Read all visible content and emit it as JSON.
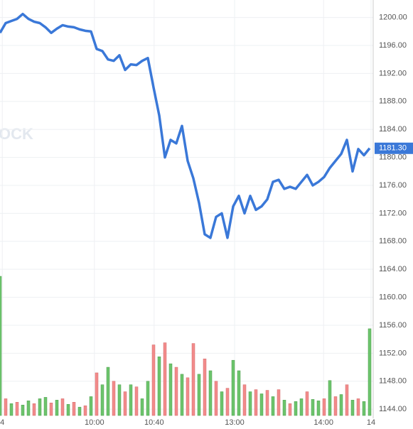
{
  "chart_data": {
    "type": "line",
    "watermark": "OCK",
    "ylim": [
      1143.1,
      1202.5
    ],
    "yticks": [
      {
        "value": 1144,
        "label": "1144.00"
      },
      {
        "value": 1148,
        "label": "1148.00"
      },
      {
        "value": 1152,
        "label": "1152.00"
      },
      {
        "value": 1156,
        "label": "1156.00"
      },
      {
        "value": 1160,
        "label": "1160.00"
      },
      {
        "value": 1164,
        "label": "1164.00"
      },
      {
        "value": 1168,
        "label": "1168.00"
      },
      {
        "value": 1172,
        "label": "1172.00"
      },
      {
        "value": 1176,
        "label": "1176.00"
      },
      {
        "value": 1180,
        "label": "1180.00"
      },
      {
        "value": 1184,
        "label": "1184.00"
      },
      {
        "value": 1188,
        "label": "1188.00"
      },
      {
        "value": 1192,
        "label": "1192.00"
      },
      {
        "value": 1196,
        "label": "1196.00"
      },
      {
        "value": 1200,
        "label": "1200.00"
      }
    ],
    "xlim": [
      0,
      65
    ],
    "xticks": [
      {
        "value": 0.4,
        "label": "4"
      },
      {
        "value": 16.6,
        "label": "10:00"
      },
      {
        "value": 27.1,
        "label": "10:40"
      },
      {
        "value": 41.25,
        "label": "13:00"
      },
      {
        "value": 56.9,
        "label": "14:00"
      },
      {
        "value": 65.25,
        "label": "14"
      }
    ],
    "grid": true,
    "series": [
      {
        "color": "#3a78d8",
        "values": [
          1197.8,
          1199.2,
          1199.5,
          1199.8,
          1200.5,
          1199.8,
          1199.4,
          1199.2,
          1198.6,
          1197.8,
          1198.4,
          1198.9,
          1198.7,
          1198.6,
          1198.3,
          1198.1,
          1198,
          1195.5,
          1195.2,
          1194,
          1193.8,
          1194.6,
          1192.5,
          1193.3,
          1193.2,
          1193.8,
          1194.2,
          1190,
          1186,
          1180,
          1182.5,
          1182,
          1184.5,
          1179.5,
          1177,
          1173.5,
          1169,
          1168.5,
          1171.5,
          1172,
          1168.5,
          1173,
          1174.5,
          1172,
          1174.5,
          1172.5,
          1173,
          1174,
          1176.5,
          1176.8,
          1175.5,
          1175.8,
          1175.5,
          1176.5,
          1177.5,
          1176,
          1176.5,
          1177.2,
          1178.5,
          1179.5,
          1180.5,
          1182.5,
          1178,
          1181.2,
          1180.3,
          1181.3
        ]
      },
      {
        "type": "bar",
        "colors": [
          "#6cc46c",
          "#f28b8b",
          "#6cc46c",
          "#f28b8b",
          "#6cc46c",
          "#6cc46c",
          "#f28b8b",
          "#6cc46c",
          "#6cc46c",
          "#f28b8b",
          "#6cc46c",
          "#f28b8b",
          "#6cc46c",
          "#f28b8b",
          "#6cc46c",
          "#f28b8b",
          "#6cc46c",
          "#f28b8b",
          "#6cc46c",
          "#6cc46c",
          "#f28b8b",
          "#6cc46c",
          "#f28b8b",
          "#6cc46c",
          "#f28b8b",
          "#6cc46c",
          "#6cc46c",
          "#f28b8b",
          "#6cc46c",
          "#f28b8b",
          "#6cc46c",
          "#f28b8b",
          "#6cc46c",
          "#f28b8b",
          "#f28b8b",
          "#6cc46c",
          "#f28b8b",
          "#6cc46c",
          "#f28b8b",
          "#6cc46c",
          "#f28b8b",
          "#6cc46c",
          "#6cc46c",
          "#f28b8b",
          "#6cc46c",
          "#f28b8b",
          "#6cc46c",
          "#f28b8b",
          "#6cc46c",
          "#f28b8b",
          "#6cc46c",
          "#f28b8b",
          "#6cc46c",
          "#6cc46c",
          "#f28b8b",
          "#6cc46c",
          "#6cc46c",
          "#f28b8b",
          "#6cc46c",
          "#f28b8b",
          "#6cc46c",
          "#f28b8b",
          "#6cc46c",
          "#f28b8b",
          "#6cc46c",
          "#6cc46c"
        ],
        "values": [
          1163,
          1145.5,
          1144.8,
          1145,
          1144.6,
          1145.2,
          1144.8,
          1145.5,
          1145.7,
          1144.9,
          1145.3,
          1145.5,
          1144.7,
          1145,
          1144.3,
          1144.5,
          1145.8,
          1149.2,
          1147.5,
          1150,
          1148,
          1147.5,
          1146.5,
          1147.5,
          1147.2,
          1145.5,
          1148,
          1153.2,
          1151.5,
          1153.5,
          1150.5,
          1150,
          1149,
          1148.5,
          1153.4,
          1149,
          1151.2,
          1149.5,
          1148,
          1146.5,
          1147,
          1151,
          1149.5,
          1147.5,
          1146.5,
          1146.8,
          1146.2,
          1146.7,
          1145.8,
          1146.8,
          1145.3,
          1144.8,
          1145.1,
          1145.5,
          1146.5,
          1145.4,
          1145.2,
          1145.5,
          1148.1,
          1145.8,
          1146.1,
          1147.5,
          1145.3,
          1145.5,
          1145.1,
          1155.5
        ]
      }
    ],
    "last": {
      "value": 1181.3,
      "label": "1181.30",
      "color": "#3a78d8"
    }
  }
}
